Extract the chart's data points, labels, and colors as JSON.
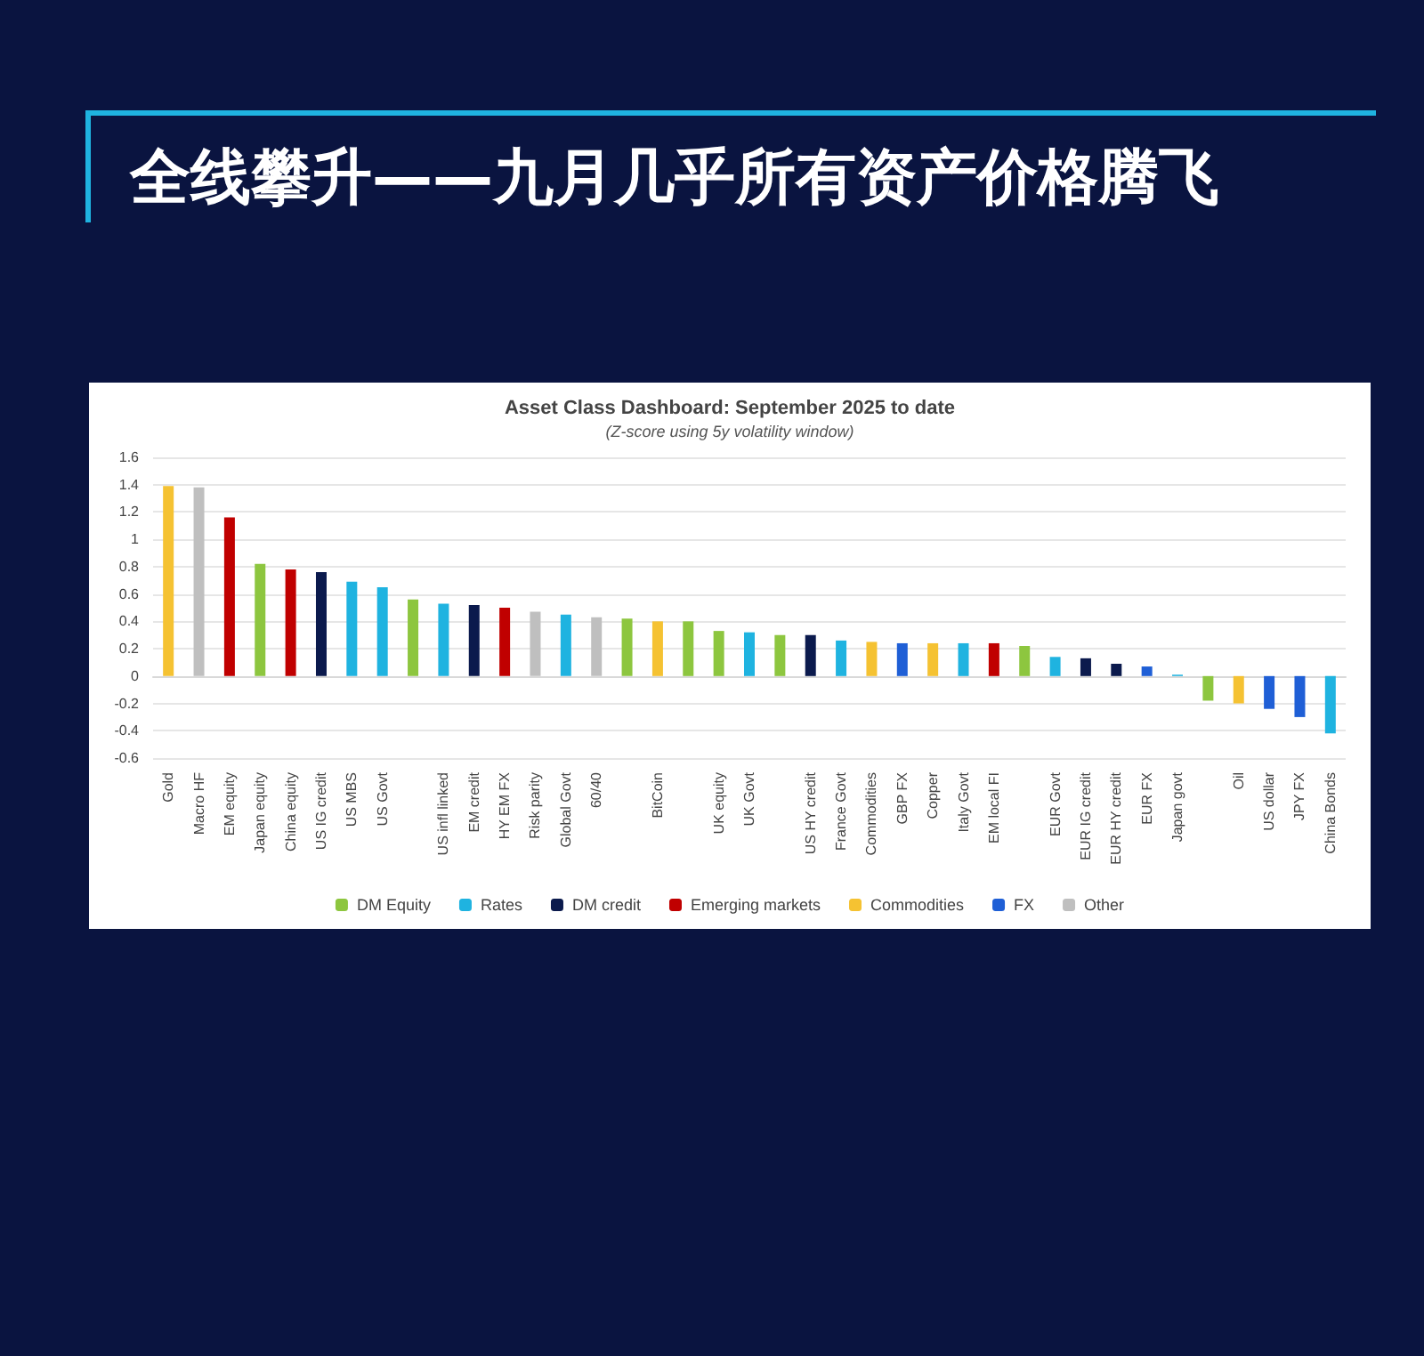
{
  "chart_data": {
    "type": "bar",
    "title": "全线攀升——九月几乎所有资产价格腾飞",
    "subtitle": "Asset Class Dashboard: September 2025 to date",
    "annotations": [
      "(Z-score using 5y volatility window)"
    ],
    "categories": [
      "Gold",
      "Macro HF",
      "EM equity",
      "Japan equity",
      "China equity",
      "US IG credit",
      "US MBS",
      "US Govt",
      null,
      "US infl linked",
      "EM credit",
      "HY EM FX",
      "Risk parity",
      "Global Govt",
      "60/40",
      null,
      "BitCoin",
      null,
      "UK equity",
      "UK Govt",
      null,
      "US HY credit",
      "France Govt",
      "Commodities",
      "GBP FX",
      "Copper",
      "Italy Govt",
      "EM local FI",
      null,
      "EUR Govt",
      "EUR IG credit",
      "EUR HY credit",
      "EUR FX",
      "Japan govt",
      null,
      "Oil",
      "US dollar",
      "JPY FX",
      "China Bonds"
    ],
    "series": [
      {
        "name": "DM Equity",
        "color": "#8dc63f",
        "values": [
          null,
          null,
          null,
          0.82,
          null,
          null,
          null,
          null,
          0.56,
          null,
          null,
          null,
          null,
          null,
          null,
          0.42,
          null,
          0.4,
          0.33,
          null,
          0.3,
          null,
          null,
          null,
          null,
          null,
          null,
          null,
          0.22,
          null,
          null,
          null,
          null,
          null,
          -0.18,
          null,
          null,
          null,
          null
        ]
      },
      {
        "name": "Rates",
        "color": "#1fb3e0",
        "values": [
          null,
          null,
          null,
          null,
          null,
          null,
          0.69,
          0.65,
          null,
          0.53,
          null,
          null,
          null,
          0.45,
          null,
          null,
          null,
          null,
          null,
          0.32,
          null,
          null,
          0.26,
          null,
          null,
          null,
          0.24,
          null,
          null,
          0.14,
          null,
          null,
          null,
          0.01,
          null,
          null,
          null,
          null,
          -0.42
        ]
      },
      {
        "name": "DM credit",
        "color": "#0b1a4d",
        "values": [
          null,
          null,
          null,
          null,
          null,
          0.76,
          null,
          null,
          null,
          null,
          0.52,
          null,
          null,
          null,
          null,
          null,
          null,
          null,
          null,
          null,
          null,
          0.3,
          null,
          null,
          null,
          null,
          null,
          null,
          null,
          null,
          0.13,
          0.09,
          null,
          null,
          null,
          null,
          null,
          null,
          null
        ]
      },
      {
        "name": "Emerging markets",
        "color": "#c00000",
        "values": [
          null,
          null,
          1.16,
          null,
          0.78,
          null,
          null,
          null,
          null,
          null,
          null,
          0.5,
          null,
          null,
          null,
          null,
          null,
          null,
          null,
          null,
          null,
          null,
          null,
          null,
          null,
          null,
          null,
          0.24,
          null,
          null,
          null,
          null,
          null,
          null,
          null,
          null,
          null,
          null,
          null
        ]
      },
      {
        "name": "Commodities",
        "color": "#f5c232",
        "values": [
          1.39,
          null,
          null,
          null,
          null,
          null,
          null,
          null,
          null,
          null,
          null,
          null,
          null,
          null,
          null,
          null,
          0.4,
          null,
          null,
          null,
          null,
          null,
          null,
          0.25,
          null,
          0.24,
          null,
          null,
          null,
          null,
          null,
          null,
          null,
          null,
          null,
          -0.2,
          null,
          null,
          null
        ]
      },
      {
        "name": "FX",
        "color": "#1f5fd6",
        "values": [
          null,
          null,
          null,
          null,
          null,
          null,
          null,
          null,
          null,
          null,
          null,
          null,
          null,
          null,
          null,
          null,
          null,
          null,
          null,
          null,
          null,
          null,
          null,
          null,
          0.24,
          null,
          null,
          null,
          null,
          null,
          null,
          null,
          0.07,
          null,
          null,
          null,
          -0.24,
          -0.3,
          null
        ]
      },
      {
        "name": "Other",
        "color": "#bfbfbf",
        "values": [
          null,
          1.38,
          null,
          null,
          null,
          null,
          null,
          null,
          null,
          null,
          null,
          null,
          0.47,
          null,
          0.43,
          null,
          null,
          null,
          null,
          null,
          null,
          null,
          null,
          null,
          null,
          null,
          null,
          null,
          null,
          null,
          null,
          null,
          null,
          null,
          null,
          null,
          null,
          null,
          null
        ]
      }
    ],
    "ylim": [
      -0.6,
      1.6
    ],
    "yticks": [
      -0.6,
      -0.4,
      -0.2,
      0,
      0.2,
      0.4,
      0.6,
      0.8,
      1,
      1.2,
      1.4,
      1.6
    ],
    "grid": "y",
    "legend": "bottom"
  }
}
